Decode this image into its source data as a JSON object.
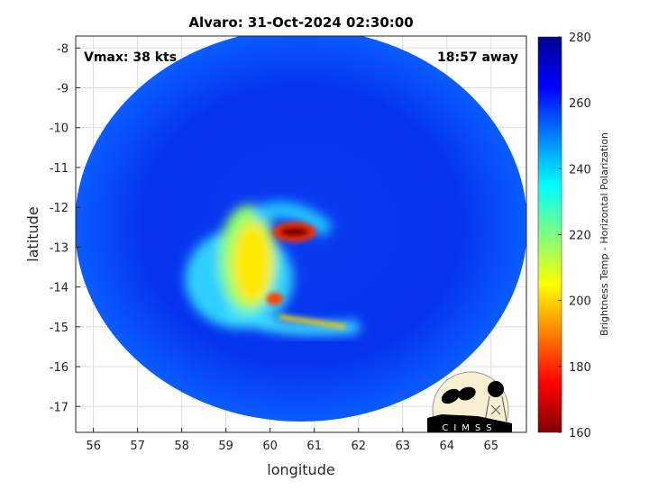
{
  "chart_data": {
    "type": "heatmap",
    "title": "Alvaro: 31-Oct-2024 02:30:00",
    "xlabel": "longitude",
    "ylabel": "latitude",
    "xlim": [
      55.6,
      65.8
    ],
    "ylim": [
      -17.65,
      -7.7
    ],
    "xticks": [
      56,
      57,
      58,
      59,
      60,
      61,
      62,
      63,
      64,
      65
    ],
    "yticks": [
      -8,
      -9,
      -10,
      -11,
      -12,
      -13,
      -14,
      -15,
      -16,
      -17
    ],
    "grid": true,
    "annotations": {
      "vmax": "Vmax: 38 kts",
      "away": "18:57 away"
    },
    "colorbar": {
      "label": "Brightness Temp - Horizontal Polarization",
      "range": [
        160,
        280
      ],
      "ticks": [
        160,
        180,
        200,
        220,
        240,
        260,
        280
      ],
      "colormap": "jet",
      "colors": [
        "#800000",
        "#ff0000",
        "#ffff00",
        "#00ffff",
        "#0000ff",
        "#00008f"
      ]
    },
    "features": [
      {
        "name": "cold core",
        "lon": 60.6,
        "lat": -12.6,
        "value": 165
      },
      {
        "name": "curved band",
        "lon": 60.2,
        "lat": -14.3,
        "value": 190
      },
      {
        "name": "outer band",
        "lon": 61.5,
        "lat": -15.0,
        "value": 225
      },
      {
        "name": "warm background",
        "value": 262
      }
    ]
  },
  "logo": {
    "text": "CIMSS"
  }
}
